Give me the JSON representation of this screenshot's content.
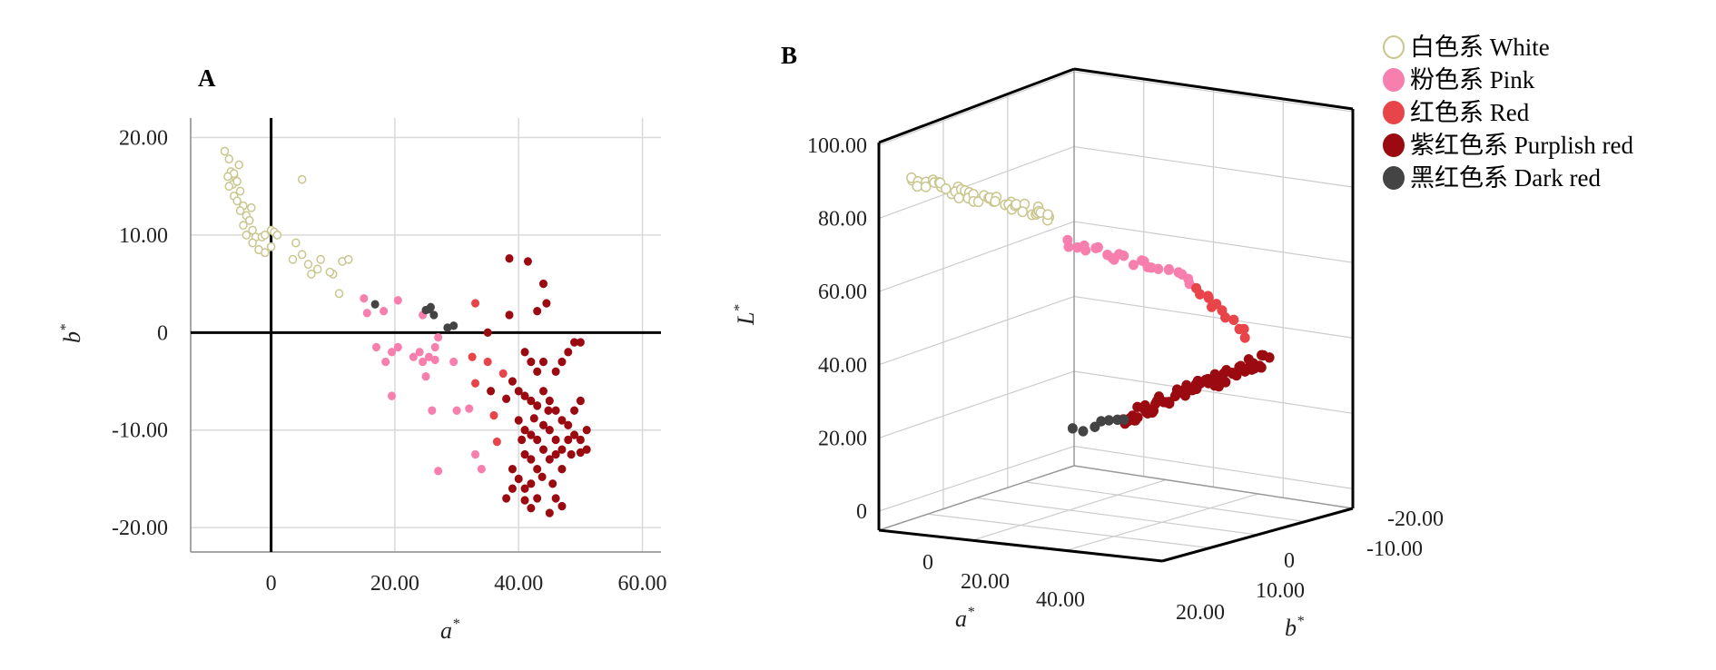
{
  "legend": [
    {
      "label": "白色系 White",
      "color": "#d8d6a6",
      "hollow": true
    },
    {
      "label": "粉色系 Pink",
      "color": "#f77fae",
      "hollow": false
    },
    {
      "label": "红色系 Red",
      "color": "#e8454a",
      "hollow": false
    },
    {
      "label": "紫红色系 Purplish red",
      "color": "#9b0a10",
      "hollow": false
    },
    {
      "label": "黑红色系 Dark red",
      "color": "#444444",
      "hollow": false
    }
  ],
  "chart_data": [
    {
      "panel": "A",
      "type": "scatter",
      "xlabel": "a",
      "ylabel": "b",
      "x_ticks": [
        "0",
        "20.00",
        "40.00",
        "60.00"
      ],
      "y_ticks": [
        "20.00",
        "10.00",
        "0",
        "-10.00",
        "-20.00"
      ],
      "xlim": [
        -13,
        63
      ],
      "ylim": [
        -22.5,
        22
      ],
      "grid": true,
      "series": [
        {
          "name": "白色系 White",
          "color": "#d8d6a6",
          "hollow": true,
          "points": [
            [
              -7.5,
              18.6
            ],
            [
              -6.8,
              17.8
            ],
            [
              -6.5,
              16.5
            ],
            [
              -6,
              16.1
            ],
            [
              -6.2,
              15.2
            ],
            [
              -6.8,
              15
            ],
            [
              -5.5,
              15.5
            ],
            [
              -5,
              14.5
            ],
            [
              -6,
              14
            ],
            [
              -5.5,
              13.5
            ],
            [
              -4.5,
              13
            ],
            [
              -5,
              12.5
            ],
            [
              -4,
              12
            ],
            [
              -3.5,
              11.5
            ],
            [
              -4.5,
              11
            ],
            [
              -3,
              10.5
            ],
            [
              -4,
              10
            ],
            [
              -2.5,
              9.8
            ],
            [
              -3,
              9.2
            ],
            [
              -2,
              8.5
            ],
            [
              -1.5,
              9.8
            ],
            [
              -1,
              10
            ],
            [
              0,
              10.5
            ],
            [
              0.5,
              10.3
            ],
            [
              1,
              10
            ],
            [
              -2,
              8.5
            ],
            [
              -1,
              8.2
            ],
            [
              0,
              8.8
            ],
            [
              -6,
              16.3
            ],
            [
              -7,
              16
            ],
            [
              -5.2,
              17.2
            ],
            [
              -3.2,
              12.8
            ],
            [
              5,
              15.7
            ],
            [
              4,
              9.2
            ],
            [
              5,
              8
            ],
            [
              6,
              7
            ],
            [
              7.5,
              6.5
            ],
            [
              8,
              7.5
            ],
            [
              10,
              6
            ],
            [
              11.5,
              7.3
            ],
            [
              12.5,
              7.5
            ],
            [
              6.5,
              6
            ],
            [
              3.5,
              7.5
            ],
            [
              9.5,
              6.2
            ],
            [
              11,
              4
            ]
          ]
        },
        {
          "name": "粉色系 Pink",
          "color": "#f77fae",
          "hollow": false,
          "points": [
            [
              15,
              3.5
            ],
            [
              15.5,
              2
            ],
            [
              18.2,
              2.2
            ],
            [
              20.5,
              3.3
            ],
            [
              17,
              -1.5
            ],
            [
              18.5,
              -3
            ],
            [
              19.5,
              -2
            ],
            [
              20.5,
              -1.5
            ],
            [
              19.5,
              -6.5
            ],
            [
              23,
              -2.5
            ],
            [
              24.5,
              -3
            ],
            [
              25,
              -4.5
            ],
            [
              24,
              -2
            ],
            [
              25.5,
              -2.5
            ],
            [
              26.5,
              -1.5
            ],
            [
              27,
              -0.5
            ],
            [
              26,
              -8
            ],
            [
              27,
              -14.2
            ],
            [
              29.5,
              -3
            ],
            [
              30,
              -8
            ],
            [
              32,
              -7.8
            ],
            [
              33,
              -12.5
            ],
            [
              34,
              -14
            ],
            [
              24.5,
              1.8
            ],
            [
              26.5,
              -2.8
            ]
          ]
        },
        {
          "name": "红色系 Red",
          "color": "#e8454a",
          "hollow": false,
          "points": [
            [
              33,
              3
            ],
            [
              32.5,
              -2.5
            ],
            [
              33,
              -5.2
            ],
            [
              35,
              -3
            ],
            [
              36,
              -8.5
            ],
            [
              36.5,
              -11.2
            ],
            [
              37.5,
              -4.2
            ]
          ]
        },
        {
          "name": "紫红色系 Purplish red",
          "color": "#9b0a10",
          "hollow": false,
          "points": [
            [
              38.5,
              7.6
            ],
            [
              41.5,
              7.3
            ],
            [
              44,
              5
            ],
            [
              44.5,
              3
            ],
            [
              43,
              2.2
            ],
            [
              38.5,
              1.8
            ],
            [
              35,
              0
            ],
            [
              41,
              -2
            ],
            [
              42,
              -3
            ],
            [
              43,
              -4
            ],
            [
              44,
              -3
            ],
            [
              46,
              -4
            ],
            [
              47,
              -3
            ],
            [
              48,
              -2
            ],
            [
              49,
              -1
            ],
            [
              50,
              -1
            ],
            [
              39,
              -5
            ],
            [
              40,
              -6
            ],
            [
              41,
              -6.5
            ],
            [
              42,
              -7
            ],
            [
              43,
              -7.5
            ],
            [
              44,
              -6
            ],
            [
              45,
              -7
            ],
            [
              46,
              -8
            ],
            [
              47,
              -9
            ],
            [
              48,
              -9.5
            ],
            [
              49,
              -8
            ],
            [
              50,
              -7
            ],
            [
              51,
              -10
            ],
            [
              40,
              -9
            ],
            [
              41,
              -10
            ],
            [
              42,
              -10.5
            ],
            [
              43,
              -11
            ],
            [
              44,
              -9.5
            ],
            [
              45,
              -10
            ],
            [
              46,
              -11
            ],
            [
              47,
              -12
            ],
            [
              48,
              -11
            ],
            [
              49,
              -10.5
            ],
            [
              50,
              -11
            ],
            [
              51,
              -12
            ],
            [
              41,
              -12.5
            ],
            [
              42,
              -13
            ],
            [
              43,
              -14
            ],
            [
              44,
              -12
            ],
            [
              45,
              -13
            ],
            [
              46,
              -12.5
            ],
            [
              47,
              -14
            ],
            [
              39,
              -14
            ],
            [
              40,
              -15
            ],
            [
              41,
              -16
            ],
            [
              42,
              -15.5
            ],
            [
              43,
              -17
            ],
            [
              45,
              -18.5
            ],
            [
              46,
              -17
            ],
            [
              38,
              -17
            ],
            [
              39,
              -16
            ],
            [
              41,
              -17.2
            ],
            [
              42,
              -18
            ],
            [
              47,
              -17.8
            ],
            [
              40.5,
              -11
            ],
            [
              38,
              -6.8
            ],
            [
              35.5,
              -6
            ],
            [
              44.8,
              -8
            ],
            [
              43.8,
              -14.8
            ],
            [
              48.5,
              -12.5
            ],
            [
              50,
              -12.3
            ],
            [
              45.5,
              -15.5
            ],
            [
              42.5,
              -8.8
            ]
          ]
        },
        {
          "name": "黑红色系 Dark red",
          "color": "#444444",
          "hollow": false,
          "points": [
            [
              16.8,
              2.9
            ],
            [
              25,
              2.3
            ],
            [
              25.5,
              2.4
            ],
            [
              26.3,
              1.8
            ],
            [
              25.8,
              2.6
            ],
            [
              28.5,
              0.5
            ],
            [
              29.5,
              0.7
            ]
          ]
        }
      ]
    },
    {
      "panel": "B",
      "type": "scatter",
      "xlabel": "a",
      "ylabel": "b",
      "zlabel": "L",
      "z_ticks": [
        "100.00",
        "80.00",
        "60.00",
        "40.00",
        "20.00",
        "0"
      ],
      "x_ticks": [
        "0",
        "20.00",
        "40.00"
      ],
      "y_ticks": [
        "-20.00",
        "-10.00",
        "0",
        "10.00",
        "20.00"
      ],
      "zlim": [
        0,
        100
      ],
      "grid": true,
      "series": [
        {
          "name": "白色系 White",
          "color": "#d8d6a6",
          "hollow": true,
          "trail": {
            "from": [
              1005,
              198
            ],
            "to": [
              1160,
              238
            ],
            "n": 46,
            "jitter": 12
          }
        },
        {
          "name": "粉色系 Pink",
          "color": "#f77fae",
          "hollow": false,
          "trail": {
            "from": [
              1175,
              265
            ],
            "to": [
              1315,
              310
            ],
            "n": 24,
            "jitter": 10
          }
        },
        {
          "name": "红色系 Red",
          "color": "#e8454a",
          "hollow": false,
          "trail": {
            "from": [
              1318,
              315
            ],
            "to": [
              1375,
              368
            ],
            "n": 12,
            "jitter": 10
          }
        },
        {
          "name": "紫红色系 Purplish red",
          "color": "#9b0a10",
          "hollow": false,
          "trail": {
            "from": [
              1235,
              462
            ],
            "to": [
              1395,
              395
            ],
            "n": 70,
            "jitter": 14
          }
        },
        {
          "name": "黑红色系 Dark red",
          "color": "#444444",
          "hollow": false,
          "trail": {
            "from": [
              1185,
              473
            ],
            "to": [
              1240,
              462
            ],
            "n": 7,
            "jitter": 8
          }
        }
      ]
    }
  ]
}
